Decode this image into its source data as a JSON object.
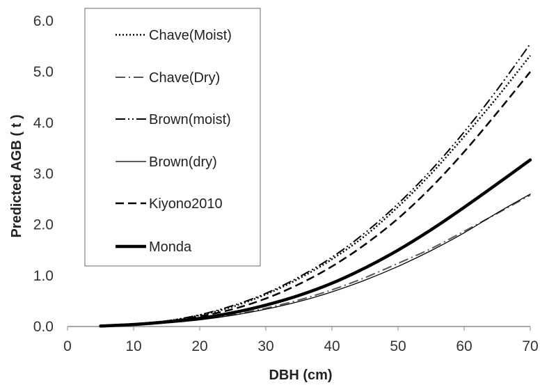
{
  "chart_data": {
    "type": "line",
    "title": "",
    "xlabel": "DBH (cm)",
    "ylabel": "Predicted AGB ( t )",
    "xlim": [
      0,
      70
    ],
    "ylim": [
      0,
      6
    ],
    "x_ticks": [
      "0",
      "10",
      "20",
      "30",
      "40",
      "50",
      "60",
      "70"
    ],
    "y_ticks": [
      "0.0",
      "1.0",
      "2.0",
      "3.0",
      "4.0",
      "5.0",
      "6.0"
    ],
    "grid": false,
    "legend_position": "top-left",
    "x": [
      5,
      10,
      15,
      20,
      25,
      30,
      35,
      40,
      45,
      50,
      55,
      60,
      65,
      70
    ],
    "series": [
      {
        "name": "Chave(Moist)",
        "style": "dotted",
        "color": "#000000",
        "values": [
          0.01,
          0.05,
          0.11,
          0.22,
          0.39,
          0.63,
          0.94,
          1.32,
          1.78,
          2.35,
          3.0,
          3.73,
          4.5,
          5.32
        ]
      },
      {
        "name": "Chave(Dry)",
        "style": "dash-dot",
        "color": "#555555",
        "values": [
          0.01,
          0.04,
          0.08,
          0.14,
          0.23,
          0.36,
          0.52,
          0.72,
          0.96,
          1.24,
          1.53,
          1.87,
          2.22,
          2.58
        ]
      },
      {
        "name": "Brown(moist)",
        "style": "dash-dot-dot",
        "color": "#000000",
        "values": [
          0.01,
          0.05,
          0.11,
          0.23,
          0.41,
          0.65,
          0.97,
          1.36,
          1.84,
          2.41,
          3.07,
          3.82,
          4.65,
          5.55
        ]
      },
      {
        "name": "Brown(dry)",
        "style": "thin-solid",
        "color": "#000000",
        "values": [
          0.01,
          0.03,
          0.07,
          0.13,
          0.22,
          0.34,
          0.49,
          0.68,
          0.91,
          1.18,
          1.49,
          1.84,
          2.23,
          2.6
        ]
      },
      {
        "name": "Kiyono2010",
        "style": "dashed",
        "color": "#000000",
        "values": [
          0.01,
          0.05,
          0.1,
          0.2,
          0.34,
          0.55,
          0.83,
          1.18,
          1.61,
          2.12,
          2.73,
          3.43,
          4.2,
          5.0
        ]
      },
      {
        "name": "Monda",
        "style": "thick-solid",
        "color": "#000000",
        "values": [
          0.01,
          0.04,
          0.09,
          0.16,
          0.27,
          0.42,
          0.61,
          0.85,
          1.15,
          1.5,
          1.9,
          2.34,
          2.8,
          3.27
        ]
      }
    ]
  }
}
